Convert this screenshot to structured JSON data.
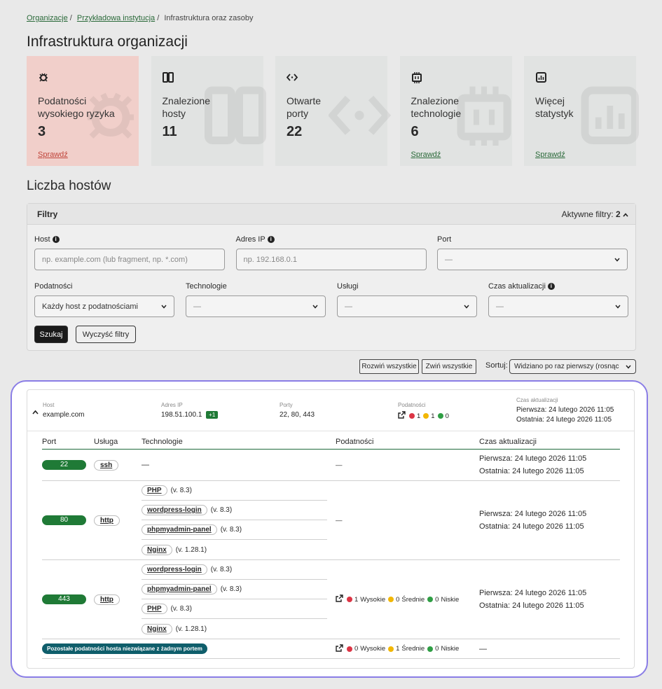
{
  "breadcrumb": {
    "items": [
      "Organizacje",
      "Przykładowa instytucja",
      "Infrastruktura oraz zasoby"
    ],
    "separator": "/"
  },
  "page_title": "Infrastruktura organizacji",
  "cards": [
    {
      "label_lines": [
        "Podatności",
        "wysokiego ryzyka"
      ],
      "value": 3,
      "link": "Sprawdź",
      "highlight": true
    },
    {
      "label_lines": [
        "Znalezione",
        "hosty"
      ],
      "value": 11
    },
    {
      "label_lines": [
        "Otwarte",
        "porty"
      ],
      "value": 22
    },
    {
      "label_lines": [
        "Znalezione",
        "technologie"
      ],
      "value": 6,
      "link": "Sprawdź"
    },
    {
      "label_lines": [
        "Więcej",
        "statystyk"
      ],
      "link": "Sprawdź"
    }
  ],
  "section_title": "Liczba hostów",
  "filters": {
    "title": "Filtry",
    "active_label": "Aktywne filtry:",
    "active_count": 2,
    "row1": [
      {
        "label": "Host",
        "info": true,
        "kind": "input",
        "text": "np. example.com (lub fragment, np. *.com)"
      },
      {
        "label": "Adres IP",
        "info": true,
        "kind": "input",
        "text": "np. 192.168.0.1"
      },
      {
        "label": "Port",
        "kind": "select",
        "text": "—"
      }
    ],
    "row2": [
      {
        "label": "Podatności",
        "kind": "select",
        "text": "Każdy host z podatnościami"
      },
      {
        "label": "Technologie",
        "kind": "select",
        "text": "—"
      },
      {
        "label": "Usługi",
        "kind": "select",
        "text": "—"
      },
      {
        "label": "Czas aktualizacji",
        "info": true,
        "kind": "select",
        "text": "—"
      }
    ],
    "search": "Szukaj",
    "clear": "Wyczyść filtry"
  },
  "toolbar": {
    "expand": "Rozwiń wszystkie",
    "collapse": "Zwiń wszystkie",
    "sort_label": "Sortuj:",
    "sort_value": "Widziano po raz pierwszy (rosnąco"
  },
  "host": {
    "labels": {
      "host": "Host",
      "ip": "Adres IP",
      "ports": "Porty",
      "vulns": "Podatności",
      "time": "Czas aktualizacji"
    },
    "name": "example.com",
    "ip": "198.51.100.1",
    "ip_extra": "+1",
    "ports": "22, 80, 443",
    "vuln_counts": [
      1,
      1,
      0
    ],
    "first": "Pierwsza: 24 lutego 2026 11:05",
    "last": "Ostatnia: 24 lutego 2026 11:05"
  },
  "severity_colors": [
    "#dc3545",
    "#f2b705",
    "#2f9e44"
  ],
  "table": {
    "columns": [
      "Port",
      "Usługa",
      "Technologie",
      "Podatności",
      "Czas aktualizacji"
    ],
    "empty": "—",
    "severity_labels": [
      "Wysokie",
      "Średnie",
      "Niskie"
    ],
    "rows": [
      {
        "port": 22,
        "service": "ssh",
        "technologies": [],
        "vulns": null,
        "first": "Pierwsza: 24 lutego 2026 11:05",
        "last": "Ostatnia: 24 lutego 2026 11:05"
      },
      {
        "port": 80,
        "service": "http",
        "technologies": [
          {
            "name": "PHP",
            "version": "(v. 8.3)"
          },
          {
            "name": "wordpress-login",
            "version": "(v. 8.3)"
          },
          {
            "name": "phpmyadmin-panel",
            "version": "(v. 8.3)"
          },
          {
            "name": "Nginx",
            "version": "(v. 1.28.1)"
          }
        ],
        "vulns": null,
        "first": "Pierwsza: 24 lutego 2026 11:05",
        "last": "Ostatnia: 24 lutego 2026 11:05"
      },
      {
        "port": 443,
        "service": "http",
        "technologies": [
          {
            "name": "wordpress-login",
            "version": "(v. 8.3)"
          },
          {
            "name": "phpmyadmin-panel",
            "version": "(v. 8.3)"
          },
          {
            "name": "PHP",
            "version": "(v. 8.3)"
          },
          {
            "name": "Nginx",
            "version": "(v. 1.28.1)"
          }
        ],
        "vulns": [
          1,
          0,
          0
        ],
        "first": "Pierwsza: 24 lutego 2026 11:05",
        "last": "Ostatnia: 24 lutego 2026 11:05"
      }
    ],
    "unassigned": {
      "label": "Pozostałe podatności hosta niezwiązane z żadnym portem",
      "vulns": [
        0,
        1,
        0
      ]
    }
  }
}
